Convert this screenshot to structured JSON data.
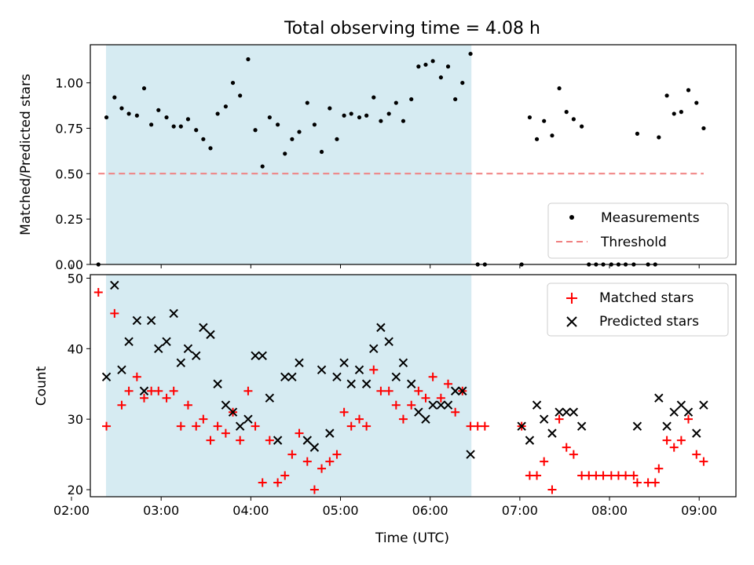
{
  "title": "Total observing time = 4.08 h",
  "chart_data": [
    {
      "type": "scatter",
      "panel": "top",
      "xlabel": "",
      "ylabel": "Matched/Predicted stars",
      "xlim": [
        2.21,
        9.41
      ],
      "ylim": [
        0.0,
        1.21
      ],
      "yticks": [
        0.0,
        0.25,
        0.5,
        0.75,
        1.0
      ],
      "ytick_labels": [
        "0.00",
        "0.25",
        "0.50",
        "0.75",
        "1.00"
      ],
      "shaded_region": {
        "x_start": 2.385,
        "x_end": 6.46,
        "color": "#add8e6"
      },
      "legend_position": "lower right",
      "series": [
        {
          "name": "Measurements",
          "marker": "dot",
          "color": "#000000",
          "points": [
            [
              2.3,
              0.0
            ],
            [
              2.39,
              0.81
            ],
            [
              2.48,
              0.92
            ],
            [
              2.56,
              0.86
            ],
            [
              2.64,
              0.83
            ],
            [
              2.73,
              0.82
            ],
            [
              2.81,
              0.97
            ],
            [
              2.89,
              0.77
            ],
            [
              2.97,
              0.85
            ],
            [
              3.06,
              0.81
            ],
            [
              3.14,
              0.76
            ],
            [
              3.22,
              0.76
            ],
            [
              3.3,
              0.8
            ],
            [
              3.39,
              0.74
            ],
            [
              3.47,
              0.69
            ],
            [
              3.55,
              0.64
            ],
            [
              3.63,
              0.83
            ],
            [
              3.72,
              0.87
            ],
            [
              3.8,
              1.0
            ],
            [
              3.88,
              0.93
            ],
            [
              3.97,
              1.13
            ],
            [
              4.05,
              0.74
            ],
            [
              4.13,
              0.54
            ],
            [
              4.21,
              0.81
            ],
            [
              4.3,
              0.77
            ],
            [
              4.38,
              0.61
            ],
            [
              4.46,
              0.69
            ],
            [
              4.54,
              0.73
            ],
            [
              4.63,
              0.89
            ],
            [
              4.71,
              0.77
            ],
            [
              4.79,
              0.62
            ],
            [
              4.88,
              0.86
            ],
            [
              4.96,
              0.69
            ],
            [
              5.04,
              0.82
            ],
            [
              5.12,
              0.83
            ],
            [
              5.21,
              0.81
            ],
            [
              5.29,
              0.82
            ],
            [
              5.37,
              0.92
            ],
            [
              5.45,
              0.79
            ],
            [
              5.54,
              0.83
            ],
            [
              5.62,
              0.89
            ],
            [
              5.7,
              0.79
            ],
            [
              5.79,
              0.91
            ],
            [
              5.87,
              1.09
            ],
            [
              5.95,
              1.1
            ],
            [
              6.03,
              1.12
            ],
            [
              6.12,
              1.03
            ],
            [
              6.2,
              1.09
            ],
            [
              6.28,
              0.91
            ],
            [
              6.36,
              1.0
            ],
            [
              6.45,
              1.16
            ],
            [
              6.53,
              0.0
            ],
            [
              6.61,
              0.0
            ],
            [
              7.02,
              0.0
            ],
            [
              7.11,
              0.81
            ],
            [
              7.19,
              0.69
            ],
            [
              7.27,
              0.79
            ],
            [
              7.36,
              0.71
            ],
            [
              7.44,
              0.97
            ],
            [
              7.52,
              0.84
            ],
            [
              7.6,
              0.8
            ],
            [
              7.69,
              0.76
            ],
            [
              7.77,
              0.0
            ],
            [
              7.85,
              0.0
            ],
            [
              7.93,
              0.0
            ],
            [
              8.02,
              0.0
            ],
            [
              8.1,
              0.0
            ],
            [
              8.18,
              0.0
            ],
            [
              8.27,
              0.0
            ],
            [
              8.31,
              0.72
            ],
            [
              8.43,
              0.0
            ],
            [
              8.51,
              0.0
            ],
            [
              8.55,
              0.7
            ],
            [
              8.64,
              0.93
            ],
            [
              8.72,
              0.83
            ],
            [
              8.8,
              0.84
            ],
            [
              8.88,
              0.96
            ],
            [
              8.97,
              0.89
            ],
            [
              9.05,
              0.75
            ]
          ]
        },
        {
          "name": "Threshold",
          "style": "dashed",
          "color": "#f08080",
          "points": [
            [
              2.3,
              0.5
            ],
            [
              9.05,
              0.5
            ]
          ]
        }
      ]
    },
    {
      "type": "scatter",
      "panel": "bottom",
      "xlabel": "Time (UTC)",
      "ylabel": "Count",
      "xlim": [
        2.21,
        9.41
      ],
      "ylim": [
        19,
        50.5
      ],
      "yticks": [
        20,
        30,
        40,
        50
      ],
      "ytick_labels": [
        "20",
        "30",
        "40",
        "50"
      ],
      "xticks": [
        2,
        3,
        4,
        5,
        6,
        7,
        8,
        9
      ],
      "xtick_labels": [
        "02:00",
        "03:00",
        "04:00",
        "05:00",
        "06:00",
        "07:00",
        "08:00",
        "09:00"
      ],
      "shaded_region": {
        "x_start": 2.385,
        "x_end": 6.46,
        "color": "#add8e6"
      },
      "legend_position": "upper right",
      "series": [
        {
          "name": "Matched stars",
          "marker": "plus",
          "color": "#ff0000",
          "points": [
            [
              2.3,
              48
            ],
            [
              2.39,
              29
            ],
            [
              2.48,
              45
            ],
            [
              2.56,
              32
            ],
            [
              2.64,
              34
            ],
            [
              2.73,
              36
            ],
            [
              2.81,
              33
            ],
            [
              2.89,
              34
            ],
            [
              2.97,
              34
            ],
            [
              3.06,
              33
            ],
            [
              3.14,
              34
            ],
            [
              3.22,
              29
            ],
            [
              3.3,
              32
            ],
            [
              3.39,
              29
            ],
            [
              3.47,
              30
            ],
            [
              3.55,
              27
            ],
            [
              3.63,
              29
            ],
            [
              3.72,
              28
            ],
            [
              3.8,
              31
            ],
            [
              3.88,
              27
            ],
            [
              3.97,
              34
            ],
            [
              4.05,
              29
            ],
            [
              4.13,
              21
            ],
            [
              4.21,
              27
            ],
            [
              4.3,
              21
            ],
            [
              4.38,
              22
            ],
            [
              4.46,
              25
            ],
            [
              4.54,
              28
            ],
            [
              4.63,
              24
            ],
            [
              4.71,
              20
            ],
            [
              4.79,
              23
            ],
            [
              4.88,
              24
            ],
            [
              4.96,
              25
            ],
            [
              5.04,
              31
            ],
            [
              5.12,
              29
            ],
            [
              5.21,
              30
            ],
            [
              5.29,
              29
            ],
            [
              5.37,
              37
            ],
            [
              5.45,
              34
            ],
            [
              5.54,
              34
            ],
            [
              5.62,
              32
            ],
            [
              5.7,
              30
            ],
            [
              5.79,
              32
            ],
            [
              5.87,
              34
            ],
            [
              5.95,
              33
            ],
            [
              6.03,
              36
            ],
            [
              6.12,
              33
            ],
            [
              6.2,
              35
            ],
            [
              6.28,
              31
            ],
            [
              6.36,
              34
            ],
            [
              6.45,
              29
            ],
            [
              6.53,
              29
            ],
            [
              6.61,
              29
            ],
            [
              7.02,
              29
            ],
            [
              7.11,
              22
            ],
            [
              7.19,
              22
            ],
            [
              7.27,
              24
            ],
            [
              7.36,
              20
            ],
            [
              7.44,
              30
            ],
            [
              7.52,
              26
            ],
            [
              7.6,
              25
            ],
            [
              7.69,
              22
            ],
            [
              7.77,
              22
            ],
            [
              7.85,
              22
            ],
            [
              7.93,
              22
            ],
            [
              8.02,
              22
            ],
            [
              8.1,
              22
            ],
            [
              8.18,
              22
            ],
            [
              8.27,
              22
            ],
            [
              8.31,
              21
            ],
            [
              8.43,
              21
            ],
            [
              8.51,
              21
            ],
            [
              8.55,
              23
            ],
            [
              8.64,
              27
            ],
            [
              8.72,
              26
            ],
            [
              8.8,
              27
            ],
            [
              8.88,
              30
            ],
            [
              8.97,
              25
            ],
            [
              9.05,
              24
            ]
          ]
        },
        {
          "name": "Predicted stars",
          "marker": "x",
          "color": "#000000",
          "points": [
            [
              2.39,
              36
            ],
            [
              2.48,
              49
            ],
            [
              2.56,
              37
            ],
            [
              2.64,
              41
            ],
            [
              2.73,
              44
            ],
            [
              2.81,
              34
            ],
            [
              2.89,
              44
            ],
            [
              2.97,
              40
            ],
            [
              3.06,
              41
            ],
            [
              3.14,
              45
            ],
            [
              3.22,
              38
            ],
            [
              3.3,
              40
            ],
            [
              3.39,
              39
            ],
            [
              3.47,
              43
            ],
            [
              3.55,
              42
            ],
            [
              3.63,
              35
            ],
            [
              3.72,
              32
            ],
            [
              3.8,
              31
            ],
            [
              3.88,
              29
            ],
            [
              3.97,
              30
            ],
            [
              4.05,
              39
            ],
            [
              4.13,
              39
            ],
            [
              4.21,
              33
            ],
            [
              4.3,
              27
            ],
            [
              4.38,
              36
            ],
            [
              4.46,
              36
            ],
            [
              4.54,
              38
            ],
            [
              4.63,
              27
            ],
            [
              4.71,
              26
            ],
            [
              4.79,
              37
            ],
            [
              4.88,
              28
            ],
            [
              4.96,
              36
            ],
            [
              5.04,
              38
            ],
            [
              5.12,
              35
            ],
            [
              5.21,
              37
            ],
            [
              5.29,
              35
            ],
            [
              5.37,
              40
            ],
            [
              5.45,
              43
            ],
            [
              5.54,
              41
            ],
            [
              5.62,
              36
            ],
            [
              5.7,
              38
            ],
            [
              5.79,
              35
            ],
            [
              5.87,
              31
            ],
            [
              5.95,
              30
            ],
            [
              6.03,
              32
            ],
            [
              6.12,
              32
            ],
            [
              6.2,
              32
            ],
            [
              6.28,
              34
            ],
            [
              6.36,
              34
            ],
            [
              6.45,
              25
            ],
            [
              7.02,
              29
            ],
            [
              7.11,
              27
            ],
            [
              7.19,
              32
            ],
            [
              7.27,
              30
            ],
            [
              7.36,
              28
            ],
            [
              7.44,
              31
            ],
            [
              7.52,
              31
            ],
            [
              7.6,
              31
            ],
            [
              7.69,
              29
            ],
            [
              8.31,
              29
            ],
            [
              8.55,
              33
            ],
            [
              8.64,
              29
            ],
            [
              8.72,
              31
            ],
            [
              8.8,
              32
            ],
            [
              8.88,
              31
            ],
            [
              8.97,
              28
            ],
            [
              9.05,
              32
            ]
          ]
        }
      ]
    }
  ]
}
